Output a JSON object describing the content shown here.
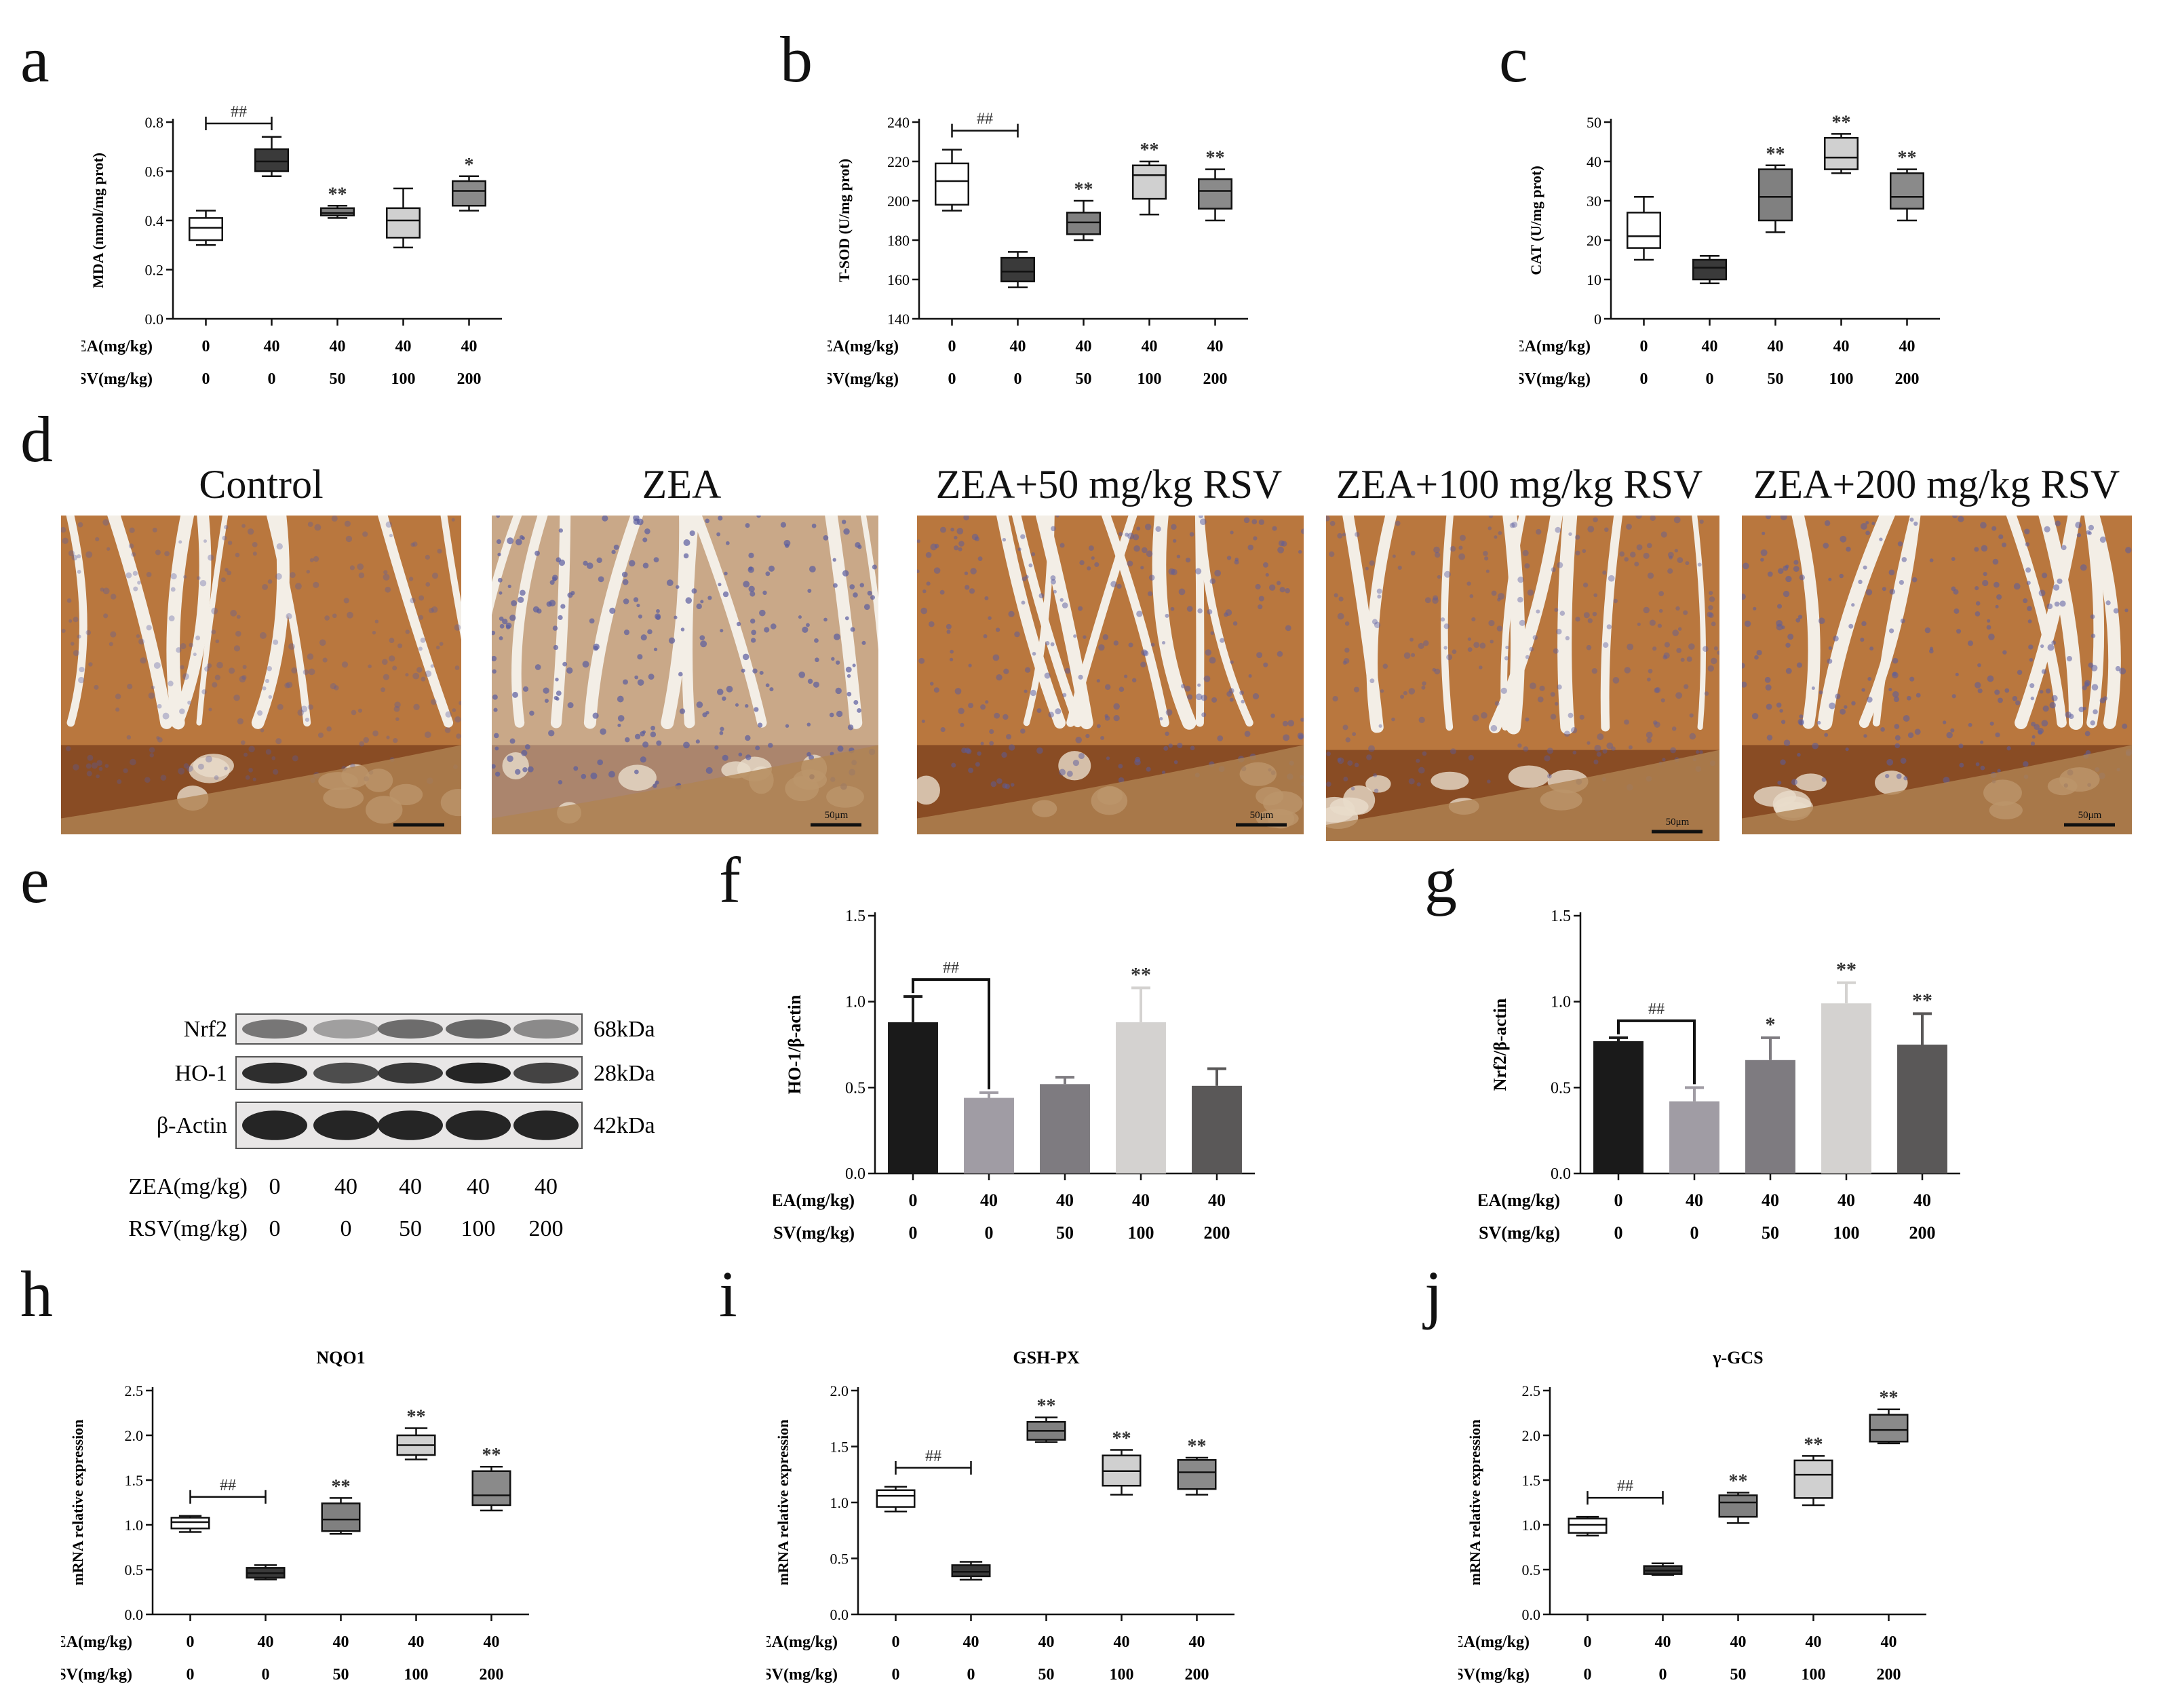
{
  "panel_letters": [
    "a",
    "b",
    "c",
    "d",
    "e",
    "f",
    "g",
    "h",
    "i",
    "j"
  ],
  "conditions": {
    "zea_label": "ZEA(mg/kg)",
    "rsv_label": "RSV(mg/kg)",
    "zea": [
      "0",
      "40",
      "40",
      "40",
      "40"
    ],
    "rsv": [
      "0",
      "0",
      "50",
      "100",
      "200"
    ]
  },
  "colors": {
    "white": "#ffffff",
    "dark": "#3a3a3a",
    "mid": "#808080",
    "light": "#d0d0d0",
    "gray": "#8a8a8a",
    "bar_black": "#1a1a1a",
    "bar_lightgray": "#a09ca4",
    "bar_gray": "#7e7b80",
    "bar_pale": "#d4d2d0",
    "bar_dark": "#5a5858",
    "tissue_base": "#c8894a",
    "tissue_dark": "#7a4020",
    "nuclei": "#5a5ca0"
  },
  "chart_data": [
    {
      "id": "a",
      "type": "boxplot",
      "ylabel": "MDA (nmol/mg prot)",
      "ylim": [
        0,
        0.8
      ],
      "yticks": [
        "0.0",
        "0.2",
        "0.4",
        "0.6",
        "0.8"
      ],
      "boxes": [
        {
          "min": 0.3,
          "q1": 0.32,
          "median": 0.37,
          "q3": 0.41,
          "max": 0.44,
          "fill": "#ffffff",
          "mark": ""
        },
        {
          "min": 0.58,
          "q1": 0.6,
          "median": 0.64,
          "q3": 0.69,
          "max": 0.74,
          "fill": "#3a3a3a",
          "mark": ""
        },
        {
          "min": 0.41,
          "q1": 0.42,
          "median": 0.43,
          "q3": 0.45,
          "max": 0.46,
          "fill": "#808080",
          "mark": "**"
        },
        {
          "min": 0.29,
          "q1": 0.33,
          "median": 0.4,
          "q3": 0.45,
          "max": 0.53,
          "fill": "#d0d0d0",
          "mark": ""
        },
        {
          "min": 0.44,
          "q1": 0.46,
          "median": 0.52,
          "q3": 0.56,
          "max": 0.58,
          "fill": "#8a8a8a",
          "mark": "*"
        }
      ],
      "bracket": "##"
    },
    {
      "id": "b",
      "type": "boxplot",
      "ylabel": "T-SOD (U/mg prot)",
      "ylim": [
        140,
        240
      ],
      "yticks": [
        "140",
        "160",
        "180",
        "200",
        "220",
        "240"
      ],
      "boxes": [
        {
          "min": 195,
          "q1": 198,
          "median": 210,
          "q3": 219,
          "max": 226,
          "fill": "#ffffff",
          "mark": ""
        },
        {
          "min": 156,
          "q1": 159,
          "median": 164,
          "q3": 171,
          "max": 174,
          "fill": "#3a3a3a",
          "mark": ""
        },
        {
          "min": 180,
          "q1": 183,
          "median": 189,
          "q3": 194,
          "max": 200,
          "fill": "#808080",
          "mark": "**"
        },
        {
          "min": 193,
          "q1": 201,
          "median": 213,
          "q3": 218,
          "max": 220,
          "fill": "#d0d0d0",
          "mark": "**"
        },
        {
          "min": 190,
          "q1": 196,
          "median": 205,
          "q3": 211,
          "max": 216,
          "fill": "#8a8a8a",
          "mark": "**"
        }
      ],
      "bracket": "##"
    },
    {
      "id": "c",
      "type": "boxplot",
      "ylabel": "CAT (U/mg prot)",
      "ylim": [
        0,
        50
      ],
      "yticks": [
        "0",
        "10",
        "20",
        "30",
        "40",
        "50"
      ],
      "boxes": [
        {
          "min": 15,
          "q1": 18,
          "median": 21,
          "q3": 27,
          "max": 31,
          "fill": "#ffffff",
          "mark": ""
        },
        {
          "min": 9,
          "q1": 10,
          "median": 13,
          "q3": 15,
          "max": 16,
          "fill": "#3a3a3a",
          "mark": ""
        },
        {
          "min": 22,
          "q1": 25,
          "median": 31,
          "q3": 38,
          "max": 39,
          "fill": "#808080",
          "mark": "**"
        },
        {
          "min": 37,
          "q1": 38,
          "median": 41,
          "q3": 46,
          "max": 47,
          "fill": "#d0d0d0",
          "mark": "**"
        },
        {
          "min": 25,
          "q1": 28,
          "median": 31,
          "q3": 37,
          "max": 38,
          "fill": "#8a8a8a",
          "mark": "**"
        }
      ],
      "bracket": ""
    },
    {
      "id": "f",
      "type": "bar",
      "ylabel": "HO-1/β-actin",
      "ylim": [
        0,
        1.5
      ],
      "yticks": [
        "0.0",
        "0.5",
        "1.0",
        "1.5"
      ],
      "values": [
        0.88,
        0.44,
        0.52,
        0.88,
        0.51
      ],
      "errors": [
        0.15,
        0.03,
        0.04,
        0.2,
        0.1
      ],
      "fills": [
        "#1a1a1a",
        "#a09ca4",
        "#7e7b80",
        "#d4d2d0",
        "#5a5858"
      ],
      "marks": [
        "",
        "",
        "",
        "**",
        ""
      ],
      "bracket": "##"
    },
    {
      "id": "g",
      "type": "bar",
      "ylabel": "Nrf2/β-actin",
      "ylim": [
        0,
        1.5
      ],
      "yticks": [
        "0.0",
        "0.5",
        "1.0",
        "1.5"
      ],
      "values": [
        0.77,
        0.42,
        0.66,
        0.99,
        0.75
      ],
      "errors": [
        0.02,
        0.08,
        0.13,
        0.12,
        0.18
      ],
      "fills": [
        "#1a1a1a",
        "#a09ca4",
        "#7e7b80",
        "#d4d2d0",
        "#5a5858"
      ],
      "marks": [
        "",
        "",
        "*",
        "**",
        "**"
      ],
      "bracket": "##"
    },
    {
      "id": "h",
      "type": "boxplot",
      "title": "NQO1",
      "ylabel": "mRNA relative expression",
      "ylim": [
        0,
        2.5
      ],
      "yticks": [
        "0.0",
        "0.5",
        "1.0",
        "1.5",
        "2.0",
        "2.5"
      ],
      "boxes": [
        {
          "min": 0.92,
          "q1": 0.96,
          "median": 1.03,
          "q3": 1.08,
          "max": 1.1,
          "fill": "#ffffff",
          "mark": ""
        },
        {
          "min": 0.39,
          "q1": 0.41,
          "median": 0.46,
          "q3": 0.52,
          "max": 0.55,
          "fill": "#3a3a3a",
          "mark": ""
        },
        {
          "min": 0.9,
          "q1": 0.93,
          "median": 1.06,
          "q3": 1.24,
          "max": 1.3,
          "fill": "#808080",
          "mark": "**"
        },
        {
          "min": 1.73,
          "q1": 1.78,
          "median": 1.89,
          "q3": 2.0,
          "max": 2.08,
          "fill": "#d0d0d0",
          "mark": "**"
        },
        {
          "min": 1.16,
          "q1": 1.22,
          "median": 1.33,
          "q3": 1.6,
          "max": 1.65,
          "fill": "#8a8a8a",
          "mark": "**"
        }
      ],
      "bracket": "##"
    },
    {
      "id": "i",
      "type": "boxplot",
      "title": "GSH-PX",
      "ylabel": "mRNA relative expression",
      "ylim": [
        0,
        2.0
      ],
      "yticks": [
        "0.0",
        "0.5",
        "1.0",
        "1.5",
        "2.0"
      ],
      "boxes": [
        {
          "min": 0.92,
          "q1": 0.96,
          "median": 1.06,
          "q3": 1.11,
          "max": 1.14,
          "fill": "#ffffff",
          "mark": ""
        },
        {
          "min": 0.31,
          "q1": 0.34,
          "median": 0.38,
          "q3": 0.44,
          "max": 0.47,
          "fill": "#3a3a3a",
          "mark": ""
        },
        {
          "min": 1.54,
          "q1": 1.56,
          "median": 1.64,
          "q3": 1.72,
          "max": 1.76,
          "fill": "#808080",
          "mark": "**"
        },
        {
          "min": 1.07,
          "q1": 1.15,
          "median": 1.28,
          "q3": 1.42,
          "max": 1.47,
          "fill": "#d0d0d0",
          "mark": "**"
        },
        {
          "min": 1.07,
          "q1": 1.12,
          "median": 1.27,
          "q3": 1.38,
          "max": 1.4,
          "fill": "#8a8a8a",
          "mark": "**"
        }
      ],
      "bracket": "##"
    },
    {
      "id": "j",
      "type": "boxplot",
      "title": "γ-GCS",
      "ylabel": "mRNA relative expression",
      "ylim": [
        0,
        2.5
      ],
      "yticks": [
        "0.0",
        "0.5",
        "1.0",
        "1.5",
        "2.0",
        "2.5"
      ],
      "boxes": [
        {
          "min": 0.88,
          "q1": 0.91,
          "median": 1.0,
          "q3": 1.07,
          "max": 1.09,
          "fill": "#ffffff",
          "mark": ""
        },
        {
          "min": 0.44,
          "q1": 0.45,
          "median": 0.49,
          "q3": 0.54,
          "max": 0.57,
          "fill": "#3a3a3a",
          "mark": ""
        },
        {
          "min": 1.02,
          "q1": 1.09,
          "median": 1.25,
          "q3": 1.33,
          "max": 1.36,
          "fill": "#808080",
          "mark": "**"
        },
        {
          "min": 1.22,
          "q1": 1.3,
          "median": 1.56,
          "q3": 1.72,
          "max": 1.77,
          "fill": "#d0d0d0",
          "mark": "**"
        },
        {
          "min": 1.91,
          "q1": 1.93,
          "median": 2.06,
          "q3": 2.23,
          "max": 2.29,
          "fill": "#8a8a8a",
          "mark": "**"
        }
      ],
      "bracket": "##"
    }
  ],
  "histology": {
    "titles": [
      "Control",
      "ZEA",
      "ZEA+50 mg/kg RSV",
      "ZEA+100 mg/kg RSV",
      "ZEA+200 mg/kg RSV"
    ],
    "scale_label": "50μm"
  },
  "western": {
    "bands": [
      {
        "name": "Nrf2",
        "size": "68kDa"
      },
      {
        "name": "HO-1",
        "size": "28kDa"
      },
      {
        "name": "β-Actin",
        "size": "42kDa"
      }
    ]
  }
}
